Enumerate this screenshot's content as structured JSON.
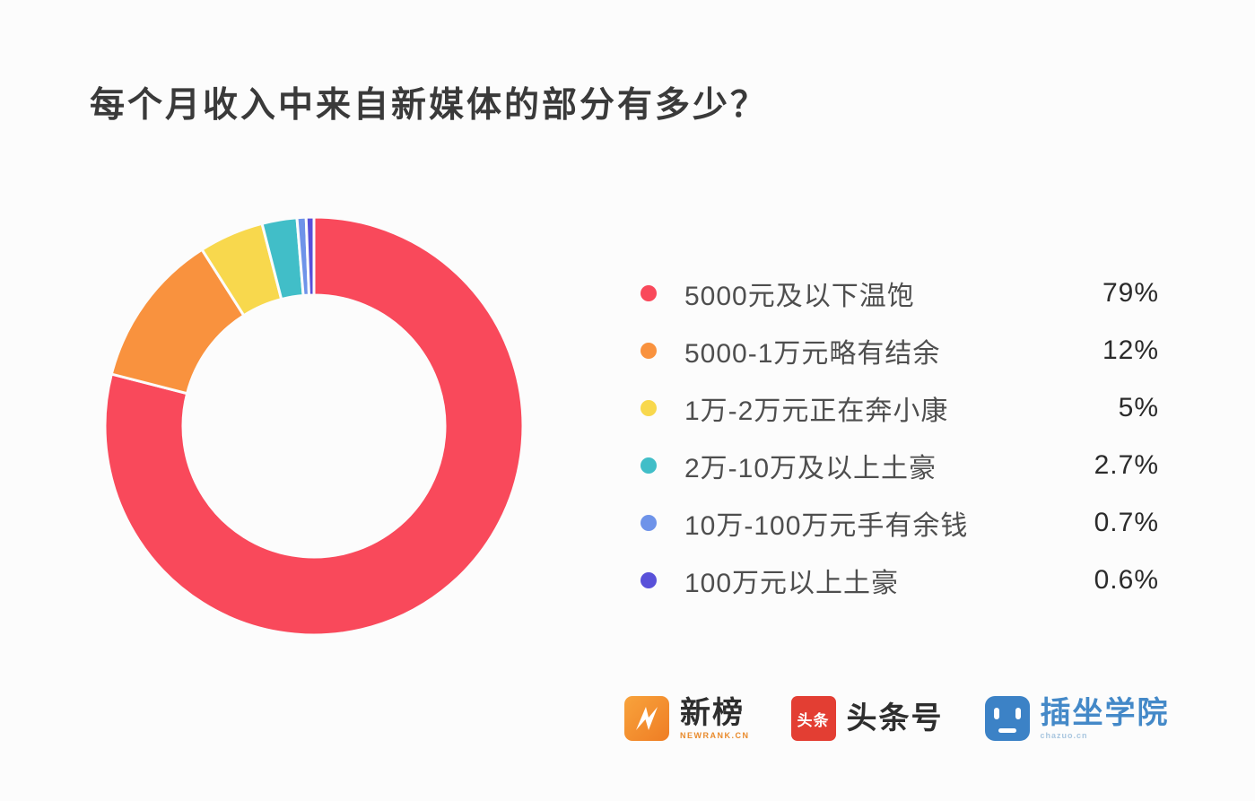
{
  "title": "每个月收入中来自新媒体的部分有多少？",
  "chart_data": {
    "type": "pie",
    "subtype": "donut",
    "title": "每个月收入中来自新媒体的部分有多少？",
    "legend_position": "right",
    "start_angle_deg": -90,
    "direction": "clockwise",
    "items": [
      {
        "label": "5000元及以下温饱",
        "value": 79,
        "pct_label": "79%",
        "color": "#F9495B"
      },
      {
        "label": "5000-1万元略有结余",
        "value": 12,
        "pct_label": "12%",
        "color": "#F9923E"
      },
      {
        "label": "1万-2万元正在奔小康",
        "value": 5,
        "pct_label": "5%",
        "color": "#F8D84D"
      },
      {
        "label": "2万-10万及以上土豪",
        "value": 2.7,
        "pct_label": "2.7%",
        "color": "#41BEC8"
      },
      {
        "label": "10万-100万元手有余钱",
        "value": 0.7,
        "pct_label": "0.7%",
        "color": "#6E93E9"
      },
      {
        "label": "100万元以上土豪",
        "value": 0.6,
        "pct_label": "0.6%",
        "color": "#5951D9"
      }
    ]
  },
  "footer": {
    "newrank": {
      "title": "新榜",
      "subtext": "NEWRANK.CN",
      "badge_color": "#F5882B"
    },
    "toutiao": {
      "badge_chars": "头条",
      "title": "头条号",
      "badge_color": "#E33E33"
    },
    "chazuo": {
      "title": "插坐学院",
      "subtext": "chazuo.cn",
      "badge_color": "#3C82C6"
    }
  }
}
